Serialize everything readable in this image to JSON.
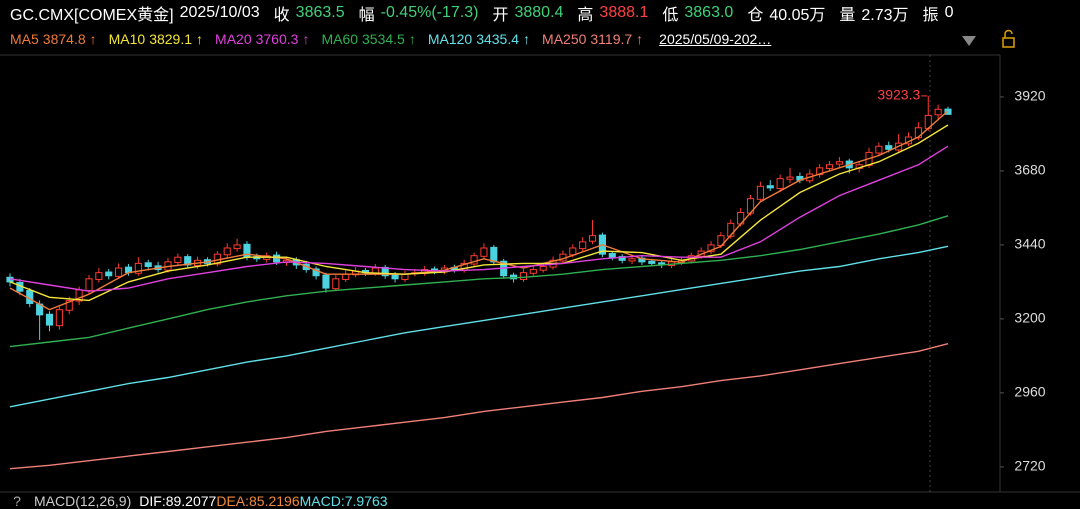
{
  "header": [
    {
      "text": "GC.CMX[COMEX黄金]",
      "color": "#ffffff"
    },
    {
      "text": "2025/10/03",
      "color": "#ffffff"
    },
    {
      "text": "收",
      "color": "#ffffff"
    },
    {
      "text": "3863.5",
      "color": "#3fd17a"
    },
    {
      "text": "幅",
      "color": "#ffffff"
    },
    {
      "text": "-0.45%(-17.3)",
      "color": "#3fd17a"
    },
    {
      "text": "开",
      "color": "#ffffff"
    },
    {
      "text": "3880.4",
      "color": "#3fd17a"
    },
    {
      "text": "高",
      "color": "#ffffff"
    },
    {
      "text": "3888.1",
      "color": "#ff4040"
    },
    {
      "text": "低",
      "color": "#ffffff"
    },
    {
      "text": "3863.0",
      "color": "#3fd17a"
    },
    {
      "text": "仓",
      "color": "#ffffff"
    },
    {
      "text": "40.05万",
      "color": "#ffffff"
    },
    {
      "text": "量",
      "color": "#ffffff"
    },
    {
      "text": "2.73万",
      "color": "#ffffff"
    },
    {
      "text": "振",
      "color": "#ffffff"
    },
    {
      "text": "0",
      "color": "#ffffff"
    }
  ],
  "range_selector": "2025/05/09-202…",
  "footer": {
    "help": "?",
    "indicator": "MACD(12,26,9)",
    "items": [
      {
        "text": "DIF:89.2077",
        "color": "#ffffff"
      },
      {
        "text": "DEA:85.2196",
        "color": "#f08a3a"
      },
      {
        "text": "MACD:7.9763",
        "color": "#60e0e8"
      }
    ]
  },
  "chart_data": {
    "type": "candlestick",
    "up_color": "#ff3b30",
    "down_color": "#4cd3e0",
    "ylim": [
      2645,
      4056
    ],
    "yticks": [
      2720,
      2960,
      3200,
      3440,
      3680,
      3920
    ],
    "annotation_index": 93,
    "open": [
      3335,
      3318,
      3292,
      3248,
      3215,
      3178,
      3228,
      3258,
      3292,
      3328,
      3352,
      3338,
      3368,
      3348,
      3382,
      3372,
      3358,
      3383,
      3402,
      3373,
      3392,
      3378,
      3408,
      3428,
      3442,
      3402,
      3393,
      3407,
      3383,
      3392,
      3377,
      3362,
      3342,
      3298,
      3328,
      3343,
      3357,
      3348,
      3367,
      3342,
      3328,
      3347,
      3348,
      3362,
      3353,
      3367,
      3358,
      3378,
      3403,
      3432,
      3387,
      3342,
      3328,
      3348,
      3358,
      3368,
      3388,
      3408,
      3428,
      3452,
      3472,
      3412,
      3402,
      3388,
      3397,
      3387,
      3382,
      3373,
      3383,
      3388,
      3403,
      3418,
      3438,
      3468,
      3508,
      3543,
      3588,
      3632,
      3623,
      3653,
      3662,
      3648,
      3668,
      3688,
      3702,
      3712,
      3688,
      3698,
      3738,
      3762,
      3748,
      3768,
      3788,
      3818,
      3862,
      3880.4
    ],
    "high": [
      3348,
      3330,
      3300,
      3260,
      3225,
      3240,
      3272,
      3305,
      3342,
      3365,
      3362,
      3380,
      3378,
      3400,
      3392,
      3385,
      3398,
      3412,
      3410,
      3402,
      3400,
      3420,
      3445,
      3460,
      3452,
      3412,
      3415,
      3418,
      3402,
      3400,
      3388,
      3370,
      3350,
      3342,
      3358,
      3368,
      3365,
      3378,
      3375,
      3352,
      3356,
      3362,
      3372,
      3370,
      3375,
      3376,
      3392,
      3415,
      3445,
      3440,
      3395,
      3350,
      3362,
      3372,
      3382,
      3402,
      3422,
      3442,
      3465,
      3521,
      3480,
      3420,
      3410,
      3405,
      3405,
      3395,
      3390,
      3395,
      3400,
      3415,
      3432,
      3452,
      3482,
      3522,
      3560,
      3602,
      3645,
      3650,
      3668,
      3690,
      3675,
      3685,
      3702,
      3712,
      3725,
      3720,
      3712,
      3755,
      3772,
      3775,
      3800,
      3805,
      3838,
      3923.3,
      3895,
      3888.1
    ],
    "low": [
      3305,
      3278,
      3238,
      3132,
      3160,
      3165,
      3215,
      3245,
      3282,
      3318,
      3328,
      3330,
      3340,
      3340,
      3358,
      3350,
      3350,
      3375,
      3365,
      3362,
      3370,
      3370,
      3398,
      3418,
      3390,
      3385,
      3383,
      3375,
      3372,
      3362,
      3350,
      3328,
      3285,
      3290,
      3320,
      3335,
      3340,
      3340,
      3330,
      3318,
      3320,
      3338,
      3340,
      3345,
      3345,
      3350,
      3350,
      3370,
      3395,
      3375,
      3330,
      3318,
      3320,
      3340,
      3350,
      3360,
      3380,
      3400,
      3420,
      3442,
      3400,
      3390,
      3380,
      3378,
      3375,
      3370,
      3365,
      3365,
      3375,
      3380,
      3395,
      3410,
      3430,
      3460,
      3500,
      3535,
      3580,
      3615,
      3612,
      3640,
      3640,
      3640,
      3658,
      3678,
      3690,
      3672,
      3675,
      3690,
      3730,
      3740,
      3740,
      3760,
      3780,
      3810,
      3850,
      3863.0
    ],
    "close": [
      3320,
      3290,
      3250,
      3213,
      3180,
      3230,
      3260,
      3294,
      3330,
      3350,
      3340,
      3365,
      3350,
      3380,
      3370,
      3360,
      3385,
      3400,
      3375,
      3390,
      3380,
      3410,
      3430,
      3440,
      3400,
      3395,
      3405,
      3385,
      3390,
      3375,
      3360,
      3340,
      3300,
      3330,
      3345,
      3355,
      3350,
      3365,
      3340,
      3330,
      3345,
      3350,
      3360,
      3355,
      3365,
      3360,
      3380,
      3405,
      3430,
      3385,
      3340,
      3330,
      3350,
      3360,
      3370,
      3390,
      3410,
      3430,
      3450,
      3470,
      3410,
      3400,
      3390,
      3395,
      3385,
      3380,
      3375,
      3385,
      3390,
      3405,
      3420,
      3440,
      3470,
      3510,
      3545,
      3590,
      3630,
      3625,
      3655,
      3660,
      3650,
      3670,
      3690,
      3700,
      3710,
      3690,
      3700,
      3740,
      3760,
      3750,
      3770,
      3790,
      3820,
      3860,
      3880,
      3863.5
    ],
    "line_x": [
      0,
      4,
      8,
      12,
      16,
      20,
      24,
      28,
      32,
      36,
      40,
      44,
      48,
      52,
      56,
      60,
      64,
      68,
      72,
      76,
      80,
      84,
      88,
      92,
      95
    ],
    "series": [
      {
        "name": "MA5",
        "color": "#f07a3a",
        "arrow": "↑",
        "values": [
          3300,
          3230,
          3280,
          3350,
          3370,
          3385,
          3410,
          3395,
          3345,
          3345,
          3345,
          3358,
          3395,
          3365,
          3395,
          3440,
          3395,
          3384,
          3435,
          3580,
          3650,
          3690,
          3730,
          3790,
          3874.8
        ]
      },
      {
        "name": "MA10",
        "color": "#f5e63a",
        "arrow": "↑",
        "values": [
          3320,
          3270,
          3260,
          3320,
          3355,
          3375,
          3400,
          3400,
          3370,
          3350,
          3345,
          3352,
          3375,
          3380,
          3380,
          3420,
          3415,
          3390,
          3410,
          3520,
          3610,
          3670,
          3710,
          3770,
          3829.1
        ]
      },
      {
        "name": "MA20",
        "color": "#e040e0",
        "arrow": "↑",
        "values": [
          3330,
          3310,
          3290,
          3300,
          3330,
          3350,
          3370,
          3385,
          3380,
          3370,
          3360,
          3355,
          3360,
          3370,
          3380,
          3395,
          3405,
          3400,
          3400,
          3450,
          3530,
          3600,
          3650,
          3700,
          3760.3
        ]
      },
      {
        "name": "MA60",
        "color": "#30b050",
        "arrow": "↑",
        "values": [
          3110,
          3125,
          3140,
          3170,
          3200,
          3230,
          3255,
          3275,
          3290,
          3300,
          3310,
          3320,
          3330,
          3335,
          3345,
          3360,
          3370,
          3380,
          3390,
          3405,
          3425,
          3450,
          3475,
          3505,
          3534.5
        ]
      },
      {
        "name": "MA120",
        "color": "#60e0e8",
        "arrow": "↑",
        "values": [
          2915,
          2940,
          2965,
          2990,
          3010,
          3035,
          3060,
          3080,
          3105,
          3130,
          3155,
          3175,
          3195,
          3215,
          3235,
          3255,
          3275,
          3295,
          3315,
          3335,
          3355,
          3370,
          3395,
          3415,
          3435.4
        ]
      },
      {
        "name": "MA250",
        "color": "#f08078",
        "arrow": "↑",
        "values": [
          2714,
          2725,
          2740,
          2755,
          2770,
          2785,
          2800,
          2815,
          2835,
          2850,
          2865,
          2880,
          2900,
          2915,
          2930,
          2945,
          2965,
          2980,
          3000,
          3015,
          3035,
          3055,
          3075,
          3095,
          3119.7
        ]
      }
    ]
  }
}
